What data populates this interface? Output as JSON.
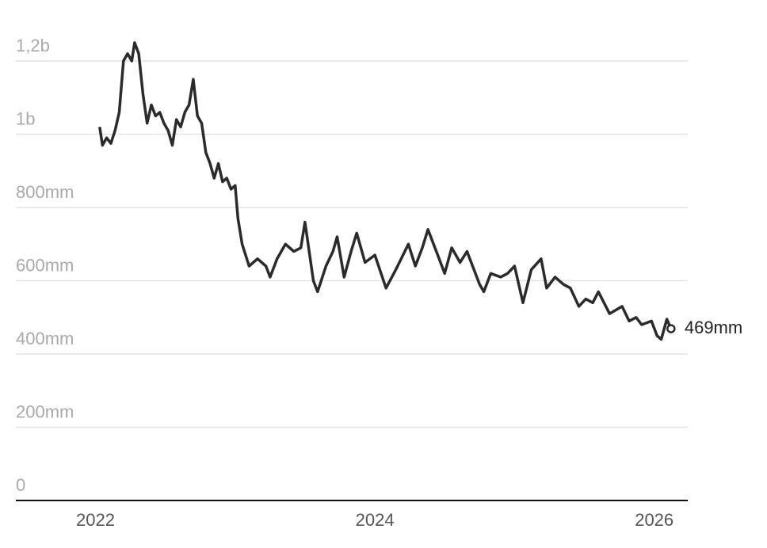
{
  "chart_data": {
    "type": "line",
    "x": [
      2022.03,
      2022.05,
      2022.08,
      2022.11,
      2022.14,
      2022.17,
      2022.2,
      2022.23,
      2022.26,
      2022.28,
      2022.31,
      2022.34,
      2022.37,
      2022.4,
      2022.43,
      2022.46,
      2022.49,
      2022.52,
      2022.55,
      2022.58,
      2022.61,
      2022.64,
      2022.67,
      2022.7,
      2022.73,
      2022.76,
      2022.79,
      2022.82,
      2022.85,
      2022.88,
      2022.91,
      2022.94,
      2022.97,
      2023.0,
      2023.02,
      2023.05,
      2023.1,
      2023.16,
      2023.22,
      2023.25,
      2023.3,
      2023.36,
      2023.42,
      2023.47,
      2023.5,
      2023.56,
      2023.59,
      2023.65,
      2023.7,
      2023.73,
      2023.78,
      2023.83,
      2023.87,
      2023.93,
      2024.0,
      2024.08,
      2024.15,
      2024.24,
      2024.29,
      2024.34,
      2024.38,
      2024.44,
      2024.5,
      2024.55,
      2024.61,
      2024.66,
      2024.72,
      2024.75,
      2024.78,
      2024.83,
      2024.9,
      2024.95,
      2025.0,
      2025.06,
      2025.12,
      2025.19,
      2025.23,
      2025.29,
      2025.35,
      2025.4,
      2025.46,
      2025.51,
      2025.56,
      2025.6,
      2025.68,
      2025.77,
      2025.82,
      2025.87,
      2025.91,
      2025.98,
      2026.02,
      2026.05,
      2026.09,
      2026.12
    ],
    "series": [
      {
        "color": "#2b2b2b",
        "values": [
          1020,
          970,
          990,
          975,
          1010,
          1060,
          1200,
          1220,
          1200,
          1250,
          1220,
          1110,
          1030,
          1080,
          1050,
          1060,
          1030,
          1010,
          970,
          1040,
          1020,
          1060,
          1080,
          1150,
          1050,
          1030,
          950,
          920,
          880,
          920,
          870,
          880,
          850,
          860,
          770,
          700,
          640,
          660,
          640,
          610,
          660,
          700,
          680,
          690,
          760,
          600,
          570,
          640,
          680,
          720,
          610,
          680,
          730,
          650,
          670,
          580,
          630,
          700,
          640,
          690,
          740,
          680,
          620,
          690,
          650,
          680,
          620,
          590,
          570,
          620,
          610,
          620,
          640,
          540,
          630,
          660,
          580,
          610,
          590,
          580,
          530,
          550,
          540,
          570,
          510,
          530,
          490,
          500,
          480,
          490,
          450,
          440,
          495,
          469
        ]
      }
    ],
    "end_label": "469mm",
    "xlim": [
      2021.43,
      2026.24
    ],
    "xticks": [
      2022,
      2024,
      2026
    ],
    "ylim": [
      0,
      1300
    ],
    "yticks": [
      0,
      {
        "value": 200,
        "label": "200mm"
      },
      {
        "value": 400,
        "label": "400mm"
      },
      {
        "value": 600,
        "label": "600mm"
      },
      {
        "value": 800,
        "label": "800mm"
      },
      {
        "value": 1000,
        "label": "1b"
      },
      {
        "value": 1200,
        "label": "1,2b"
      }
    ],
    "grid": true
  }
}
